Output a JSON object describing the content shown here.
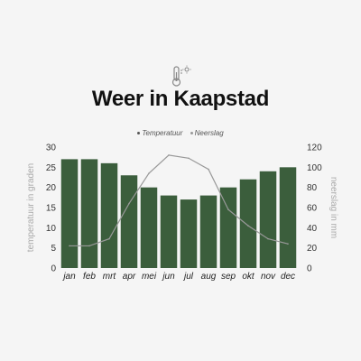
{
  "title": "Weer in Kaapstad",
  "icon": "thermometer-sun-icon",
  "chart_data": {
    "type": "bar",
    "categories": [
      "jan",
      "feb",
      "mrt",
      "apr",
      "mei",
      "jun",
      "jul",
      "aug",
      "sep",
      "okt",
      "nov",
      "dec"
    ],
    "series": [
      {
        "name": "Temperatuur",
        "type": "bar",
        "axis": "left",
        "color": "#3b5e3c",
        "values": [
          27,
          27,
          26,
          23,
          20,
          18,
          17,
          18,
          20,
          22,
          24,
          25
        ]
      },
      {
        "name": "Neerslag",
        "type": "line",
        "axis": "right",
        "color": "#999999",
        "values": [
          22,
          22,
          29,
          64,
          94,
          112,
          109,
          98,
          58,
          42,
          29,
          24
        ]
      }
    ],
    "ylabel": "temperatuur in graden",
    "y2label": "neerslag in mm",
    "ylim": [
      0,
      30
    ],
    "y2lim": [
      0,
      120
    ],
    "yticks": [
      "0",
      "5",
      "10",
      "15",
      "20",
      "25",
      "30"
    ],
    "y2ticks": [
      "0",
      "20",
      "40",
      "60",
      "80",
      "100",
      "120"
    ],
    "legend": "top-center"
  }
}
